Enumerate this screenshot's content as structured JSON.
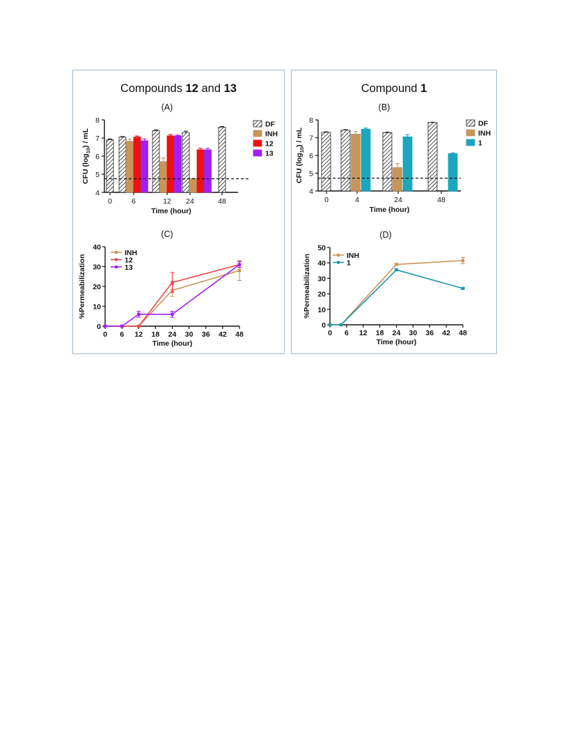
{
  "figure": {
    "left_title": {
      "prefix": "Compounds ",
      "a": "12",
      "mid": " and ",
      "b": "13"
    },
    "right_title": {
      "prefix": "Compound ",
      "a": "1"
    }
  },
  "colors": {
    "DF": "#ffffff",
    "INH": "#c8955a",
    "12": "#ee1111",
    "13": "#a020f0",
    "1": "#1aa6bc",
    "INH_line": "#c8955a",
    "12_line": "#ee4444",
    "13_line": "#a020f0",
    "1_line": "#1f97ad"
  },
  "chart_data": [
    {
      "id": "A",
      "type": "bar",
      "panel_label": "(A)",
      "xlabel": "Time (hour)",
      "ylabel": "CFU (log10) / mL",
      "ylim": [
        4,
        8
      ],
      "yticks": [
        4,
        5,
        6,
        7,
        8
      ],
      "categories": [
        "0",
        "6",
        "12",
        "24",
        "48"
      ],
      "series": [
        {
          "name": "DF",
          "values": [
            6.9,
            7.05,
            7.4,
            7.3,
            7.6
          ],
          "err": [
            0.05,
            0.03,
            0.05,
            0.08,
            0.03
          ]
        },
        {
          "name": "INH",
          "values": [
            null,
            6.82,
            5.7,
            4.75,
            null
          ],
          "err": [
            0,
            0.12,
            0.2,
            0.03,
            0
          ]
        },
        {
          "name": "12",
          "values": [
            null,
            7.05,
            7.12,
            6.35,
            null
          ],
          "err": [
            0,
            0.06,
            0.07,
            0.08,
            0
          ]
        },
        {
          "name": "13",
          "values": [
            null,
            6.85,
            7.12,
            6.35,
            null
          ],
          "err": [
            0,
            0.1,
            0.04,
            0.08,
            0
          ]
        }
      ],
      "detection_limit": 4.75,
      "legend": "right"
    },
    {
      "id": "B",
      "type": "bar",
      "panel_label": "(B)",
      "xlabel": "Time (hour)",
      "ylabel": "CFU (log10) / mL",
      "ylim": [
        4,
        8
      ],
      "yticks": [
        4,
        5,
        6,
        7,
        8
      ],
      "categories": [
        "0",
        "4",
        "24",
        "48"
      ],
      "series": [
        {
          "name": "DF",
          "values": [
            7.3,
            7.42,
            7.28,
            7.85
          ],
          "err": [
            0.03,
            0.03,
            0.03,
            0.02
          ]
        },
        {
          "name": "INH",
          "values": [
            null,
            7.2,
            5.32,
            null
          ],
          "err": [
            0,
            0.15,
            0.22,
            0
          ]
        },
        {
          "name": "1",
          "values": [
            null,
            7.48,
            7.05,
            6.1
          ],
          "err": [
            0,
            0.06,
            0.12,
            0.04
          ]
        }
      ],
      "detection_limit": 4.72,
      "legend": "right"
    },
    {
      "id": "C",
      "type": "line",
      "panel_label": "(C)",
      "xlabel": "Time (hour)",
      "ylabel": "%Permeabilization",
      "xlim": [
        0,
        48
      ],
      "xticks": [
        0,
        6,
        12,
        18,
        24,
        30,
        36,
        42,
        48
      ],
      "ylim": [
        0,
        40
      ],
      "yticks": [
        0,
        10,
        20,
        30,
        40
      ],
      "series": [
        {
          "name": "INH",
          "x": [
            0,
            6,
            12,
            24,
            48
          ],
          "y": [
            0,
            0,
            0,
            18,
            28
          ],
          "err": [
            0,
            0,
            0,
            3,
            5
          ]
        },
        {
          "name": "12",
          "x": [
            0,
            6,
            12,
            24,
            48
          ],
          "y": [
            0,
            0,
            0,
            22,
            31
          ],
          "err": [
            0,
            0,
            0,
            5,
            1.5
          ]
        },
        {
          "name": "13",
          "x": [
            0,
            6,
            12,
            24,
            48
          ],
          "y": [
            0,
            0,
            6,
            6,
            31
          ],
          "err": [
            0,
            0,
            1.5,
            1.5,
            1.5
          ]
        }
      ],
      "legend": "top-left"
    },
    {
      "id": "D",
      "type": "line",
      "panel_label": "(D)",
      "xlabel": "Time (hour)",
      "ylabel": "%Permeabilization",
      "xlim": [
        0,
        48
      ],
      "xticks": [
        0,
        6,
        12,
        18,
        24,
        30,
        36,
        42,
        48
      ],
      "ylim": [
        0,
        50
      ],
      "yticks": [
        0,
        10,
        20,
        30,
        40,
        50
      ],
      "series": [
        {
          "name": "INH",
          "x": [
            0,
            4,
            24,
            48
          ],
          "y": [
            0,
            0,
            39,
            41.5
          ],
          "err": [
            0,
            0,
            0.5,
            2
          ]
        },
        {
          "name": "1",
          "x": [
            0,
            4,
            24,
            48
          ],
          "y": [
            0,
            0,
            35.5,
            23.5
          ],
          "err": [
            0,
            0,
            0.5,
            0.5
          ]
        }
      ],
      "legend": "top-left"
    }
  ]
}
